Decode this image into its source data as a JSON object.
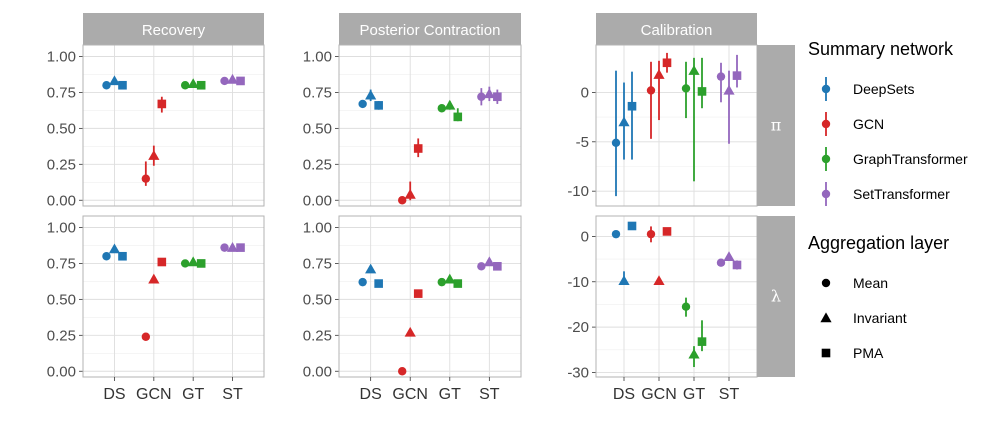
{
  "chart_data": {
    "type": "scatter",
    "columns": [
      "Recovery",
      "Posterior Contraction",
      "Calibration"
    ],
    "rows": [
      "π",
      "λ"
    ],
    "categories": [
      "DS",
      "GCN",
      "GT",
      "ST"
    ],
    "shared_y_panels": {
      "ylim": [
        -0.04,
        1.08
      ],
      "ticks": [
        "0.00",
        "0.25",
        "0.50",
        "0.75",
        "1.00"
      ],
      "tick_values": [
        0,
        0.25,
        0.5,
        0.75,
        1.0
      ]
    },
    "calibration_axes": {
      "π": {
        "ylim": [
          -11.5,
          4.8
        ],
        "ticks": [
          "0",
          "-5",
          "-10"
        ],
        "tick_values": [
          0,
          -5,
          -10
        ]
      },
      "λ": {
        "ylim": [
          -31,
          4.5
        ],
        "ticks": [
          "0",
          "-10",
          "-20",
          "-30"
        ],
        "tick_values": [
          0,
          -10,
          -20,
          -30
        ]
      }
    },
    "legend": {
      "color_title": "Summary network",
      "color_entries": [
        {
          "name": "DeepSets",
          "color": "#1f77b4"
        },
        {
          "name": "GCN",
          "color": "#d62728"
        },
        {
          "name": "GraphTransformer",
          "color": "#2ca02c"
        },
        {
          "name": "SetTransformer",
          "color": "#9467bd"
        }
      ],
      "shape_title": "Aggregation layer",
      "shape_entries": [
        {
          "name": "Mean",
          "shape": "circle"
        },
        {
          "name": "Invariant",
          "shape": "triangle"
        },
        {
          "name": "PMA",
          "shape": "square"
        }
      ]
    },
    "aggregations": [
      "Mean",
      "Invariant",
      "PMA"
    ],
    "series": {
      "Recovery": {
        "π": {
          "DS": [
            [
              0.8,
              0.79,
              0.81
            ],
            [
              0.83,
              0.82,
              0.84
            ],
            [
              0.8,
              0.79,
              0.81
            ]
          ],
          "GCN": [
            [
              0.15,
              0.1,
              0.27
            ],
            [
              0.31,
              0.24,
              0.38
            ],
            [
              0.67,
              0.61,
              0.72
            ]
          ],
          "GT": [
            [
              0.8,
              0.79,
              0.81
            ],
            [
              0.81,
              0.8,
              0.82
            ],
            [
              0.8,
              0.79,
              0.81
            ]
          ],
          "ST": [
            [
              0.83,
              0.82,
              0.84
            ],
            [
              0.84,
              0.83,
              0.85
            ],
            [
              0.83,
              0.82,
              0.84
            ]
          ]
        },
        "λ": {
          "DS": [
            [
              0.8,
              0.79,
              0.81
            ],
            [
              0.85,
              0.84,
              0.86
            ],
            [
              0.8,
              0.79,
              0.81
            ]
          ],
          "GCN": [
            [
              0.24,
              0.23,
              0.25
            ],
            [
              0.64,
              0.63,
              0.65
            ],
            [
              0.76,
              0.75,
              0.77
            ]
          ],
          "GT": [
            [
              0.75,
              0.74,
              0.76
            ],
            [
              0.76,
              0.75,
              0.77
            ],
            [
              0.75,
              0.74,
              0.76
            ]
          ],
          "ST": [
            [
              0.86,
              0.85,
              0.87
            ],
            [
              0.86,
              0.85,
              0.87
            ],
            [
              0.86,
              0.85,
              0.87
            ]
          ]
        }
      },
      "Posterior Contraction": {
        "π": {
          "DS": [
            [
              0.67,
              0.66,
              0.68
            ],
            [
              0.73,
              0.69,
              0.77
            ],
            [
              0.66,
              0.63,
              0.69
            ]
          ],
          "GCN": [
            [
              0.0,
              -0.01,
              0.01
            ],
            [
              0.04,
              0.0,
              0.13
            ],
            [
              0.36,
              0.3,
              0.43
            ]
          ],
          "GT": [
            [
              0.64,
              0.62,
              0.66
            ],
            [
              0.66,
              0.63,
              0.69
            ],
            [
              0.58,
              0.55,
              0.64
            ]
          ],
          "ST": [
            [
              0.72,
              0.66,
              0.78
            ],
            [
              0.74,
              0.69,
              0.79
            ],
            [
              0.72,
              0.67,
              0.77
            ]
          ]
        },
        "λ": {
          "DS": [
            [
              0.62,
              0.61,
              0.63
            ],
            [
              0.71,
              0.7,
              0.72
            ],
            [
              0.61,
              0.6,
              0.62
            ]
          ],
          "GCN": [
            [
              0.0,
              -0.01,
              0.01
            ],
            [
              0.27,
              0.26,
              0.28
            ],
            [
              0.54,
              0.53,
              0.55
            ]
          ],
          "GT": [
            [
              0.62,
              0.61,
              0.63
            ],
            [
              0.64,
              0.63,
              0.65
            ],
            [
              0.61,
              0.6,
              0.62
            ]
          ],
          "ST": [
            [
              0.73,
              0.72,
              0.74
            ],
            [
              0.76,
              0.75,
              0.77
            ],
            [
              0.73,
              0.72,
              0.74
            ]
          ]
        }
      },
      "Calibration": {
        "π": {
          "DS": [
            [
              -5.1,
              -10.5,
              2.2
            ],
            [
              -3.0,
              -6.8,
              1.0
            ],
            [
              -1.4,
              -6.8,
              2.1
            ]
          ],
          "GCN": [
            [
              0.2,
              -4.7,
              3.1
            ],
            [
              1.8,
              -2.8,
              3.2
            ],
            [
              3.0,
              2.0,
              4.0
            ]
          ],
          "GT": [
            [
              0.4,
              -2.6,
              3.1
            ],
            [
              2.2,
              -9.0,
              3.5
            ],
            [
              0.1,
              -1.6,
              3.5
            ]
          ],
          "ST": [
            [
              1.6,
              -1.0,
              3.0
            ],
            [
              0.2,
              -5.2,
              2.2
            ],
            [
              1.7,
              0.5,
              3.8
            ]
          ]
        },
        "λ": {
          "DS": [
            [
              0.5,
              0.2,
              0.8
            ],
            [
              -9.8,
              -10.6,
              -7.7
            ],
            [
              2.3,
              1.8,
              2.8
            ]
          ],
          "GCN": [
            [
              0.5,
              -1.3,
              2.2
            ],
            [
              -9.8,
              -10.2,
              -9.4
            ],
            [
              1.1,
              0.7,
              1.5
            ]
          ],
          "GT": [
            [
              -15.5,
              -17.7,
              -13.5
            ],
            [
              -26.0,
              -28.8,
              -24.2
            ],
            [
              -23.2,
              -25.3,
              -18.5
            ]
          ],
          "ST": [
            [
              -5.8,
              -6.1,
              -5.5
            ],
            [
              -4.5,
              -5.4,
              -3.6
            ],
            [
              -6.3,
              -7.3,
              -5.3
            ]
          ]
        }
      }
    }
  }
}
